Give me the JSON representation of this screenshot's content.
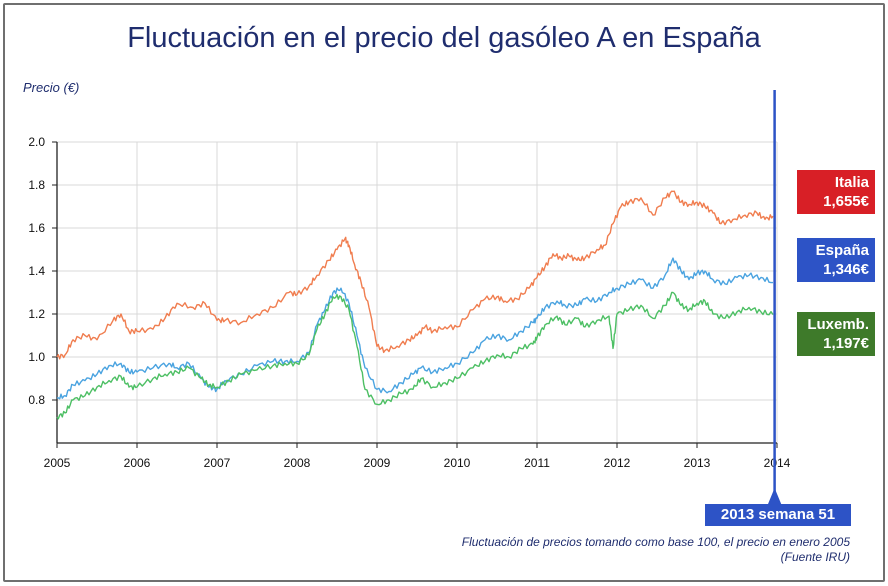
{
  "title": "Fluctuación en el precio del gasóleo A en España",
  "chart_data": {
    "type": "line",
    "title": "Fluctuación en el precio del gasóleo A en España",
    "xlabel": "",
    "ylabel": "Precio (€)",
    "xlim": [
      2005,
      2014
    ],
    "ylim": [
      0.6,
      2.0
    ],
    "x_ticks": [
      "2005",
      "2006",
      "2007",
      "2008",
      "2009",
      "2010",
      "2011",
      "2012",
      "2013",
      "2014"
    ],
    "y_ticks": [
      "0.8",
      "1.0",
      "1.2",
      "1.4",
      "1.6",
      "1.8",
      "2.0"
    ],
    "grid": true,
    "series": [
      {
        "name": "Italia",
        "color": "#f07d4f",
        "points": [
          [
            2005.0,
            1.0
          ],
          [
            2005.1,
            1.01
          ],
          [
            2005.2,
            1.08
          ],
          [
            2005.35,
            1.1
          ],
          [
            2005.5,
            1.08
          ],
          [
            2005.7,
            1.17
          ],
          [
            2005.8,
            1.2
          ],
          [
            2005.9,
            1.12
          ],
          [
            2006.0,
            1.12
          ],
          [
            2006.2,
            1.13
          ],
          [
            2006.35,
            1.18
          ],
          [
            2006.5,
            1.25
          ],
          [
            2006.7,
            1.23
          ],
          [
            2006.85,
            1.25
          ],
          [
            2007.0,
            1.17
          ],
          [
            2007.1,
            1.17
          ],
          [
            2007.3,
            1.16
          ],
          [
            2007.5,
            1.2
          ],
          [
            2007.7,
            1.23
          ],
          [
            2007.9,
            1.3
          ],
          [
            2008.0,
            1.29
          ],
          [
            2008.15,
            1.33
          ],
          [
            2008.25,
            1.38
          ],
          [
            2008.4,
            1.45
          ],
          [
            2008.5,
            1.5
          ],
          [
            2008.6,
            1.55
          ],
          [
            2008.65,
            1.52
          ],
          [
            2008.72,
            1.43
          ],
          [
            2008.8,
            1.35
          ],
          [
            2008.9,
            1.23
          ],
          [
            2009.0,
            1.05
          ],
          [
            2009.1,
            1.03
          ],
          [
            2009.25,
            1.05
          ],
          [
            2009.4,
            1.08
          ],
          [
            2009.5,
            1.1
          ],
          [
            2009.6,
            1.14
          ],
          [
            2009.7,
            1.12
          ],
          [
            2009.85,
            1.14
          ],
          [
            2010.0,
            1.14
          ],
          [
            2010.2,
            1.22
          ],
          [
            2010.35,
            1.27
          ],
          [
            2010.5,
            1.28
          ],
          [
            2010.6,
            1.26
          ],
          [
            2010.75,
            1.27
          ],
          [
            2010.9,
            1.32
          ],
          [
            2011.0,
            1.37
          ],
          [
            2011.1,
            1.42
          ],
          [
            2011.2,
            1.48
          ],
          [
            2011.3,
            1.46
          ],
          [
            2011.4,
            1.47
          ],
          [
            2011.5,
            1.45
          ],
          [
            2011.6,
            1.46
          ],
          [
            2011.75,
            1.5
          ],
          [
            2011.85,
            1.52
          ],
          [
            2011.95,
            1.62
          ],
          [
            2012.05,
            1.7
          ],
          [
            2012.15,
            1.72
          ],
          [
            2012.3,
            1.74
          ],
          [
            2012.45,
            1.66
          ],
          [
            2012.6,
            1.74
          ],
          [
            2012.7,
            1.77
          ],
          [
            2012.8,
            1.72
          ],
          [
            2012.9,
            1.71
          ],
          [
            2013.0,
            1.72
          ],
          [
            2013.1,
            1.7
          ],
          [
            2013.2,
            1.67
          ],
          [
            2013.3,
            1.62
          ],
          [
            2013.45,
            1.64
          ],
          [
            2013.6,
            1.66
          ],
          [
            2013.75,
            1.67
          ],
          [
            2013.85,
            1.64
          ],
          [
            2013.95,
            1.655
          ]
        ]
      },
      {
        "name": "España",
        "color": "#4aa3e0",
        "points": [
          [
            2005.0,
            0.81
          ],
          [
            2005.1,
            0.82
          ],
          [
            2005.2,
            0.87
          ],
          [
            2005.35,
            0.89
          ],
          [
            2005.5,
            0.92
          ],
          [
            2005.65,
            0.96
          ],
          [
            2005.8,
            0.97
          ],
          [
            2005.9,
            0.93
          ],
          [
            2006.0,
            0.93
          ],
          [
            2006.2,
            0.95
          ],
          [
            2006.4,
            0.97
          ],
          [
            2006.5,
            0.95
          ],
          [
            2006.65,
            0.97
          ],
          [
            2006.8,
            0.9
          ],
          [
            2006.9,
            0.86
          ],
          [
            2007.0,
            0.85
          ],
          [
            2007.1,
            0.89
          ],
          [
            2007.3,
            0.92
          ],
          [
            2007.5,
            0.96
          ],
          [
            2007.7,
            0.98
          ],
          [
            2007.85,
            0.98
          ],
          [
            2008.0,
            0.98
          ],
          [
            2008.15,
            1.02
          ],
          [
            2008.25,
            1.15
          ],
          [
            2008.35,
            1.22
          ],
          [
            2008.45,
            1.3
          ],
          [
            2008.55,
            1.32
          ],
          [
            2008.65,
            1.25
          ],
          [
            2008.75,
            1.1
          ],
          [
            2008.85,
            0.95
          ],
          [
            2009.0,
            0.85
          ],
          [
            2009.15,
            0.84
          ],
          [
            2009.3,
            0.88
          ],
          [
            2009.45,
            0.92
          ],
          [
            2009.55,
            0.95
          ],
          [
            2009.7,
            0.93
          ],
          [
            2009.85,
            0.95
          ],
          [
            2010.0,
            0.97
          ],
          [
            2010.2,
            1.02
          ],
          [
            2010.35,
            1.08
          ],
          [
            2010.5,
            1.1
          ],
          [
            2010.65,
            1.08
          ],
          [
            2010.8,
            1.12
          ],
          [
            2010.95,
            1.16
          ],
          [
            2011.0,
            1.18
          ],
          [
            2011.1,
            1.23
          ],
          [
            2011.25,
            1.26
          ],
          [
            2011.35,
            1.24
          ],
          [
            2011.5,
            1.24
          ],
          [
            2011.6,
            1.27
          ],
          [
            2011.75,
            1.26
          ],
          [
            2011.9,
            1.3
          ],
          [
            2012.0,
            1.32
          ],
          [
            2012.15,
            1.34
          ],
          [
            2012.3,
            1.36
          ],
          [
            2012.45,
            1.32
          ],
          [
            2012.6,
            1.38
          ],
          [
            2012.7,
            1.46
          ],
          [
            2012.8,
            1.4
          ],
          [
            2012.9,
            1.36
          ],
          [
            2013.0,
            1.39
          ],
          [
            2013.1,
            1.4
          ],
          [
            2013.2,
            1.36
          ],
          [
            2013.35,
            1.34
          ],
          [
            2013.5,
            1.37
          ],
          [
            2013.65,
            1.38
          ],
          [
            2013.8,
            1.37
          ],
          [
            2013.95,
            1.346
          ]
        ]
      },
      {
        "name": "Luxemb.",
        "color": "#4dbf64",
        "points": [
          [
            2005.0,
            0.72
          ],
          [
            2005.1,
            0.74
          ],
          [
            2005.2,
            0.8
          ],
          [
            2005.35,
            0.82
          ],
          [
            2005.5,
            0.86
          ],
          [
            2005.65,
            0.89
          ],
          [
            2005.8,
            0.91
          ],
          [
            2005.9,
            0.86
          ],
          [
            2006.0,
            0.86
          ],
          [
            2006.2,
            0.9
          ],
          [
            2006.35,
            0.92
          ],
          [
            2006.5,
            0.93
          ],
          [
            2006.65,
            0.95
          ],
          [
            2006.8,
            0.9
          ],
          [
            2006.9,
            0.87
          ],
          [
            2007.0,
            0.86
          ],
          [
            2007.15,
            0.89
          ],
          [
            2007.3,
            0.92
          ],
          [
            2007.5,
            0.94
          ],
          [
            2007.7,
            0.96
          ],
          [
            2007.85,
            0.97
          ],
          [
            2008.0,
            0.97
          ],
          [
            2008.15,
            1.01
          ],
          [
            2008.25,
            1.13
          ],
          [
            2008.35,
            1.2
          ],
          [
            2008.45,
            1.28
          ],
          [
            2008.55,
            1.28
          ],
          [
            2008.65,
            1.22
          ],
          [
            2008.75,
            1.05
          ],
          [
            2008.85,
            0.85
          ],
          [
            2009.0,
            0.78
          ],
          [
            2009.15,
            0.8
          ],
          [
            2009.3,
            0.83
          ],
          [
            2009.45,
            0.85
          ],
          [
            2009.55,
            0.9
          ],
          [
            2009.7,
            0.86
          ],
          [
            2009.85,
            0.88
          ],
          [
            2010.0,
            0.9
          ],
          [
            2010.2,
            0.95
          ],
          [
            2010.35,
            0.98
          ],
          [
            2010.5,
            1.01
          ],
          [
            2010.65,
            1.0
          ],
          [
            2010.8,
            1.04
          ],
          [
            2010.95,
            1.06
          ],
          [
            2011.0,
            1.09
          ],
          [
            2011.1,
            1.15
          ],
          [
            2011.25,
            1.19
          ],
          [
            2011.35,
            1.15
          ],
          [
            2011.5,
            1.18
          ],
          [
            2011.6,
            1.14
          ],
          [
            2011.75,
            1.17
          ],
          [
            2011.9,
            1.19
          ],
          [
            2011.95,
            1.04
          ],
          [
            2012.0,
            1.2
          ],
          [
            2012.15,
            1.22
          ],
          [
            2012.3,
            1.24
          ],
          [
            2012.45,
            1.18
          ],
          [
            2012.6,
            1.24
          ],
          [
            2012.7,
            1.3
          ],
          [
            2012.8,
            1.24
          ],
          [
            2012.9,
            1.22
          ],
          [
            2013.0,
            1.25
          ],
          [
            2013.1,
            1.26
          ],
          [
            2013.2,
            1.2
          ],
          [
            2013.35,
            1.18
          ],
          [
            2013.5,
            1.21
          ],
          [
            2013.65,
            1.23
          ],
          [
            2013.8,
            1.21
          ],
          [
            2013.95,
            1.197
          ]
        ]
      }
    ],
    "marker_x": 2013.97,
    "marker_color": "#2d53c6",
    "annotations": [
      {
        "series": "Italia",
        "label": "Italia",
        "value": "1,655€",
        "color": "#d81f26"
      },
      {
        "series": "España",
        "label": "España",
        "value": "1,346€",
        "color": "#2d53c6"
      },
      {
        "series": "Luxemb.",
        "label": "Luxemb.",
        "value": "1,197€",
        "color": "#3e7a2a"
      }
    ]
  },
  "week_label": "2013 semana 51",
  "footnote": {
    "line1": "Fluctuación de precios tomando como base 100, el precio en enero 2005",
    "line2": "(Fuente IRU)"
  }
}
